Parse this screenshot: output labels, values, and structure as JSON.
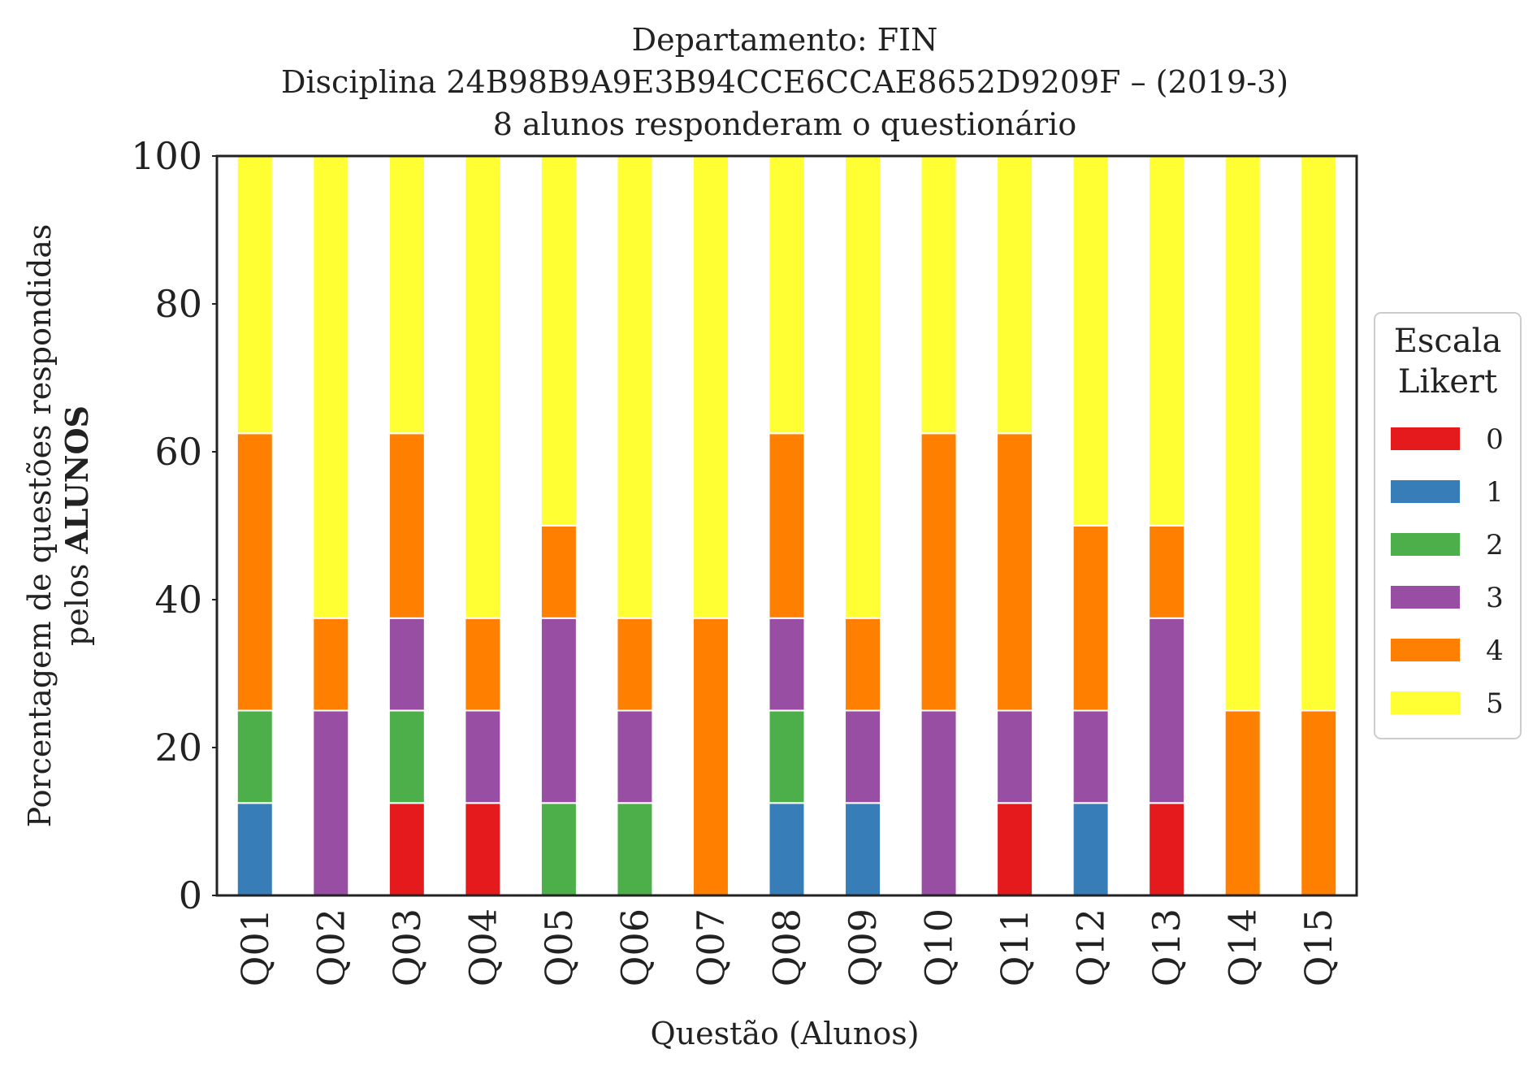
{
  "chart_data": {
    "type": "bar",
    "stacked": true,
    "title": [
      "Departamento: FIN",
      "Disciplina 24B98B9A9E3B94CCE6CCAE8652D9209F – (2019-3)",
      "8 alunos responderam o questionário"
    ],
    "xlabel": "Questão (Alunos)",
    "ylabel_line1": "Porcentagem de questões respondidas",
    "ylabel_line2_prefix": "pelos ",
    "ylabel_line2_bold": "ALUNOS",
    "ylim": [
      0,
      100
    ],
    "yticks": [
      "0",
      "20",
      "40",
      "60",
      "80",
      "100"
    ],
    "grid": false,
    "legend_position": "right",
    "legend_title": [
      "Escala",
      "Likert"
    ],
    "categories": [
      "Q01",
      "Q02",
      "Q03",
      "Q04",
      "Q05",
      "Q06",
      "Q07",
      "Q08",
      "Q09",
      "Q10",
      "Q11",
      "Q12",
      "Q13",
      "Q14",
      "Q15"
    ],
    "series": [
      {
        "name": "0",
        "color": "#e41a1c",
        "values": [
          0,
          0,
          12.5,
          12.5,
          0,
          0,
          0,
          0,
          0,
          0,
          12.5,
          0,
          12.5,
          0,
          0
        ]
      },
      {
        "name": "1",
        "color": "#377eb8",
        "values": [
          12.5,
          0,
          0,
          0,
          0,
          0,
          0,
          12.5,
          12.5,
          0,
          0,
          12.5,
          0,
          0,
          0
        ]
      },
      {
        "name": "2",
        "color": "#4daf4a",
        "values": [
          12.5,
          0,
          12.5,
          0,
          12.5,
          12.5,
          0,
          12.5,
          0,
          0,
          0,
          0,
          0,
          0,
          0
        ]
      },
      {
        "name": "3",
        "color": "#984ea3",
        "values": [
          0,
          25,
          12.5,
          12.5,
          25,
          12.5,
          0,
          12.5,
          12.5,
          25,
          12.5,
          12.5,
          25,
          0,
          0
        ]
      },
      {
        "name": "4",
        "color": "#ff7f00",
        "values": [
          37.5,
          12.5,
          25,
          12.5,
          12.5,
          12.5,
          37.5,
          25,
          12.5,
          37.5,
          37.5,
          25,
          12.5,
          25,
          25
        ]
      },
      {
        "name": "5",
        "color": "#ffff33",
        "values": [
          37.5,
          62.5,
          37.5,
          62.5,
          50,
          62.5,
          62.5,
          37.5,
          62.5,
          37.5,
          37.5,
          50,
          50,
          75,
          75
        ]
      }
    ]
  }
}
